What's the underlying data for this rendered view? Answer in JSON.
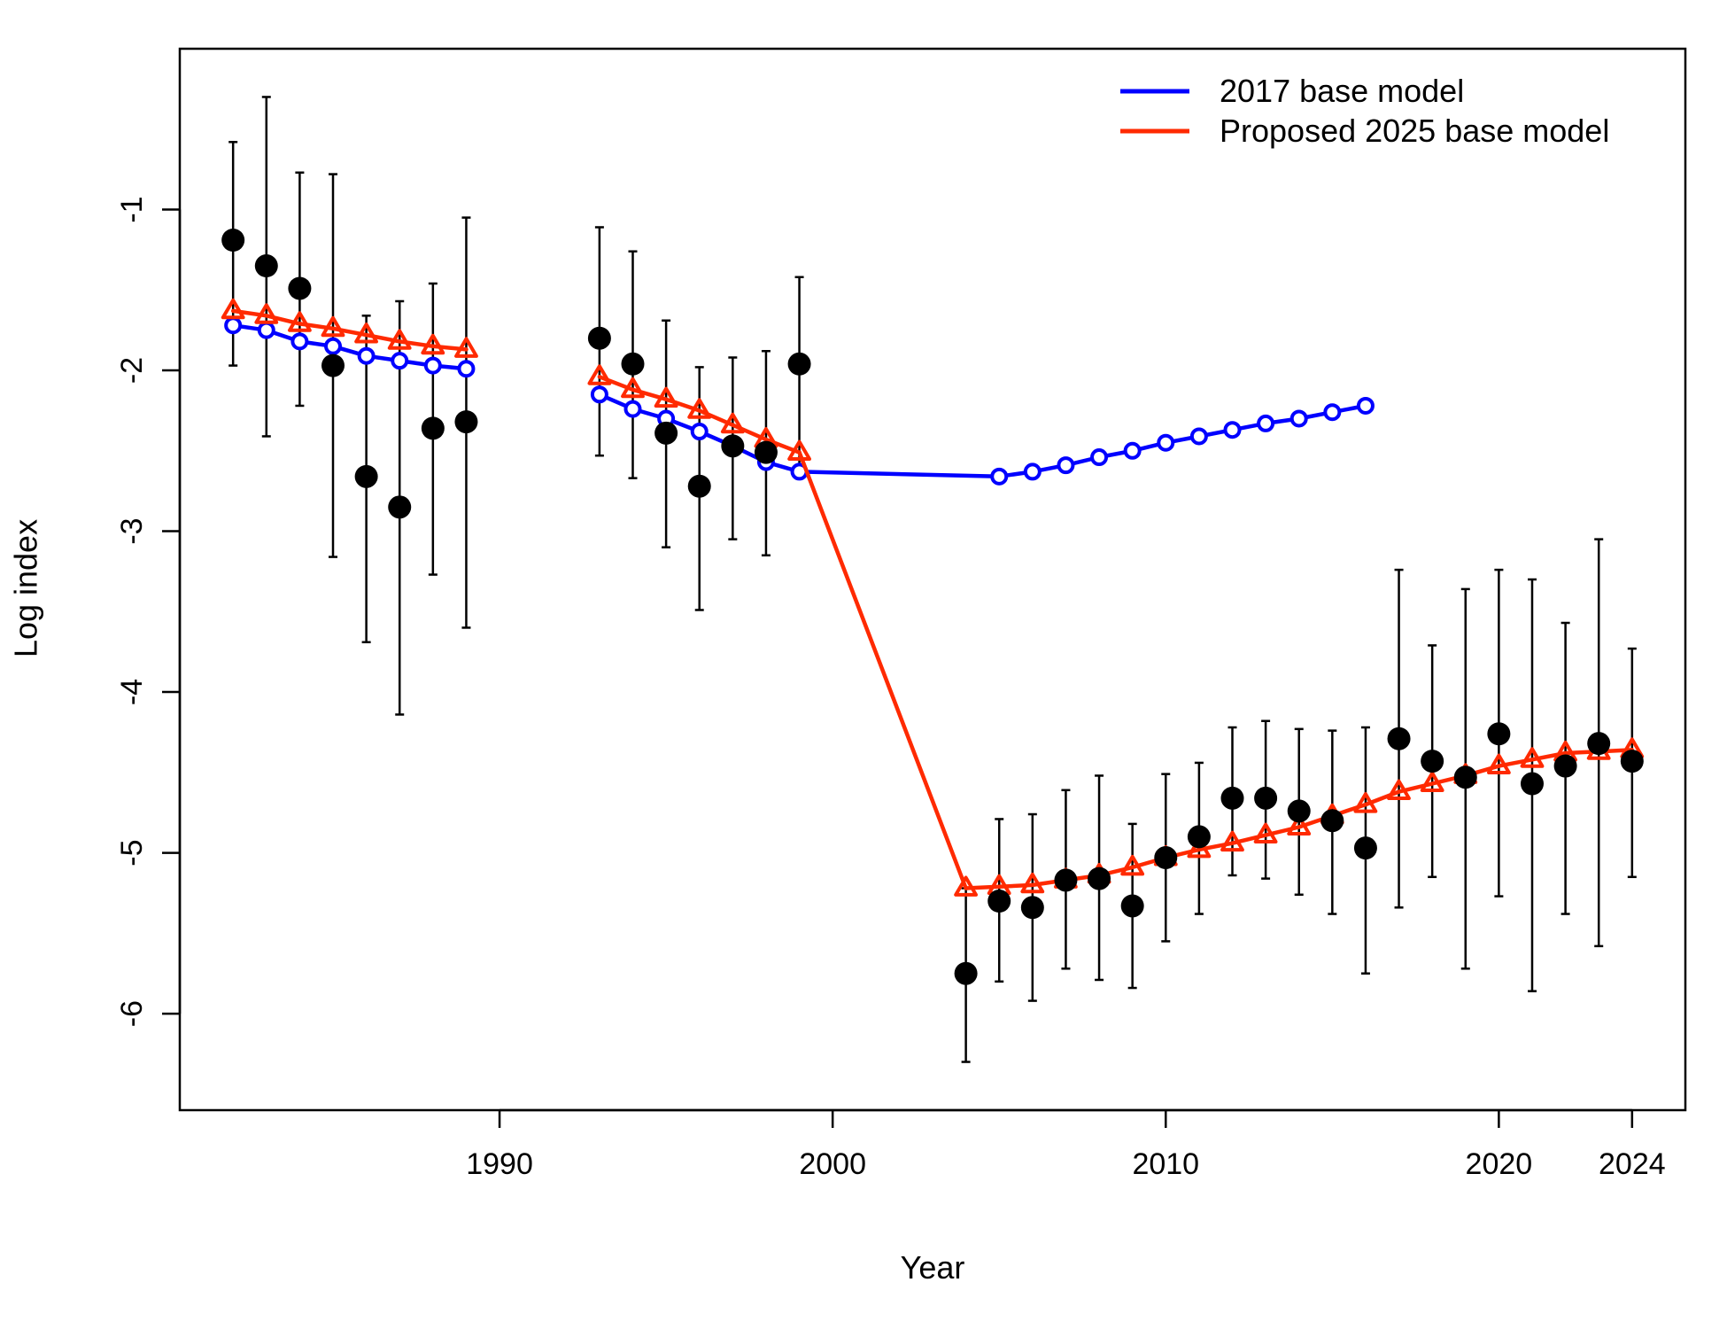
{
  "chart_data": {
    "type": "line",
    "xlabel": "Year",
    "ylabel": "Log index",
    "xlim": [
      1980.4,
      2025.6
    ],
    "ylim": [
      -6.6,
      -0.0
    ],
    "xticks": [
      1990,
      2000,
      2010,
      2020,
      2024
    ],
    "yticks": [
      -1,
      -2,
      -3,
      -4,
      -5,
      -6
    ],
    "legend_position": "top-right",
    "legend": [
      {
        "label": "2017 base model",
        "color": "#0000ff",
        "series": "2017"
      },
      {
        "label": "Proposed 2025 base model",
        "color": "#ff2a00",
        "series": "2025"
      }
    ],
    "observed": {
      "x": [
        1982,
        1983,
        1984,
        1985,
        1986,
        1987,
        1988,
        1989,
        1993,
        1994,
        1995,
        1996,
        1997,
        1998,
        1999,
        2004,
        2005,
        2006,
        2007,
        2008,
        2009,
        2010,
        2011,
        2012,
        2013,
        2014,
        2015,
        2016,
        2017,
        2018,
        2019,
        2020,
        2021,
        2022,
        2023,
        2024
      ],
      "y": [
        -1.19,
        -1.35,
        -1.49,
        -1.97,
        -2.66,
        -2.85,
        -2.36,
        -2.32,
        -1.8,
        -1.96,
        -2.39,
        -2.72,
        -2.47,
        -2.51,
        -1.96,
        -5.75,
        -5.3,
        -5.34,
        -5.17,
        -5.16,
        -5.33,
        -5.03,
        -4.9,
        -4.66,
        -4.66,
        -4.74,
        -4.8,
        -4.97,
        -4.29,
        -4.43,
        -4.53,
        -4.26,
        -4.57,
        -4.46,
        -4.32,
        -4.43
      ],
      "lower": [
        -1.97,
        -2.41,
        -2.22,
        -3.16,
        -3.69,
        -4.14,
        -3.27,
        -3.6,
        -2.53,
        -2.67,
        -3.1,
        -3.49,
        -3.05,
        -3.15,
        -2.59,
        -6.3,
        -5.8,
        -5.92,
        -5.72,
        -5.79,
        -5.84,
        -5.55,
        -5.38,
        -5.14,
        -5.16,
        -5.26,
        -5.38,
        -5.75,
        -5.34,
        -5.15,
        -5.72,
        -5.27,
        -5.86,
        -5.38,
        -5.58,
        -5.15
      ],
      "upper": [
        -0.58,
        -0.3,
        -0.77,
        -0.78,
        -1.66,
        -1.57,
        -1.46,
        -1.05,
        -1.11,
        -1.26,
        -1.69,
        -1.98,
        -1.92,
        -1.88,
        -1.42,
        -5.22,
        -4.79,
        -4.76,
        -4.61,
        -4.52,
        -4.82,
        -4.51,
        -4.44,
        -4.22,
        -4.18,
        -4.23,
        -4.24,
        -4.22,
        -3.24,
        -3.71,
        -3.36,
        -3.24,
        -3.3,
        -3.57,
        -3.05,
        -3.73
      ]
    },
    "series": [
      {
        "id": "2017",
        "name": "2017 base model",
        "color": "#0000ff",
        "marker": "circle",
        "segments": [
          {
            "x": [
              1982,
              1983,
              1984,
              1985,
              1986,
              1987,
              1988,
              1989
            ],
            "y": [
              -1.72,
              -1.75,
              -1.82,
              -1.85,
              -1.91,
              -1.94,
              -1.97,
              -1.99
            ]
          },
          {
            "x": [
              1993,
              1994,
              1995,
              1996,
              1997,
              1998,
              1999
            ],
            "y": [
              -2.15,
              -2.24,
              -2.3,
              -2.38,
              -2.47,
              -2.57,
              -2.63
            ]
          },
          {
            "x": [
              1999,
              2005
            ],
            "y": [
              -2.63,
              -2.66
            ],
            "markers": false
          },
          {
            "x": [
              2005,
              2006,
              2007,
              2008,
              2009,
              2010,
              2011,
              2012,
              2013,
              2014,
              2015,
              2016
            ],
            "y": [
              -2.66,
              -2.63,
              -2.59,
              -2.54,
              -2.5,
              -2.45,
              -2.41,
              -2.37,
              -2.33,
              -2.3,
              -2.26,
              -2.22
            ]
          }
        ]
      },
      {
        "id": "2025",
        "name": "Proposed 2025 base model",
        "color": "#ff2a00",
        "marker": "triangle",
        "segments": [
          {
            "x": [
              1982,
              1983,
              1984,
              1985,
              1986,
              1987,
              1988,
              1989
            ],
            "y": [
              -1.63,
              -1.66,
              -1.71,
              -1.74,
              -1.78,
              -1.82,
              -1.85,
              -1.87
            ]
          },
          {
            "x": [
              1993,
              1994,
              1995,
              1996,
              1997,
              1998,
              1999
            ],
            "y": [
              -2.04,
              -2.12,
              -2.18,
              -2.25,
              -2.34,
              -2.43,
              -2.51
            ]
          },
          {
            "x": [
              1999,
              2004
            ],
            "y": [
              -2.51,
              -5.22
            ],
            "markers": false
          },
          {
            "x": [
              2004,
              2005,
              2006,
              2007,
              2008,
              2009,
              2010,
              2011,
              2012,
              2013,
              2014,
              2015,
              2016,
              2017,
              2018,
              2019,
              2020,
              2021,
              2022,
              2023,
              2024
            ],
            "y": [
              -5.22,
              -5.21,
              -5.2,
              -5.17,
              -5.14,
              -5.09,
              -5.03,
              -4.98,
              -4.94,
              -4.89,
              -4.84,
              -4.77,
              -4.7,
              -4.62,
              -4.57,
              -4.52,
              -4.46,
              -4.42,
              -4.38,
              -4.37,
              -4.36
            ]
          }
        ]
      }
    ]
  }
}
